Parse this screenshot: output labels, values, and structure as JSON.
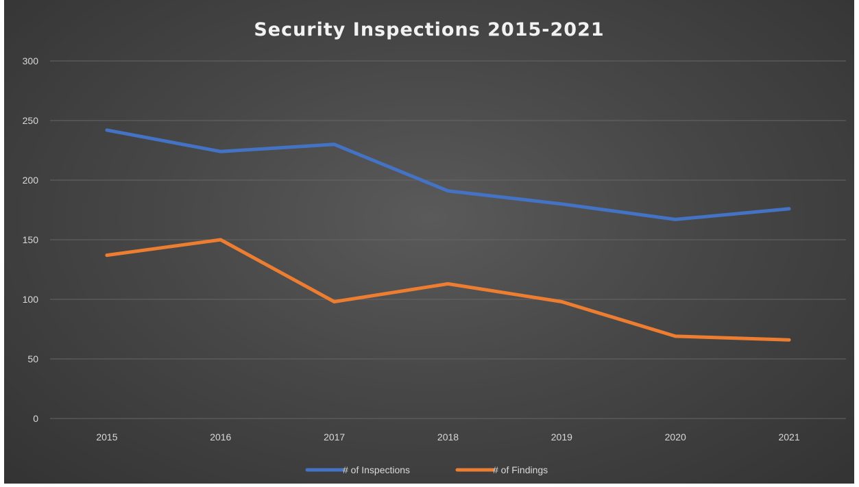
{
  "chart_data": {
    "type": "line",
    "title": "Security Inspections 2015-2021",
    "xlabel": "",
    "ylabel": "",
    "categories": [
      "2015",
      "2016",
      "2017",
      "2018",
      "2019",
      "2020",
      "2021"
    ],
    "ylim": [
      0,
      300
    ],
    "yticks": [
      0,
      50,
      100,
      150,
      200,
      250,
      300
    ],
    "grid": true,
    "legend_position": "bottom",
    "series": [
      {
        "name": "# of Inspections",
        "color": "#4472C4",
        "values": [
          242,
          224,
          230,
          191,
          180,
          167,
          176
        ]
      },
      {
        "name": "# of Findings",
        "color": "#ED7D31",
        "values": [
          137,
          150,
          98,
          113,
          98,
          69,
          66
        ]
      }
    ]
  }
}
